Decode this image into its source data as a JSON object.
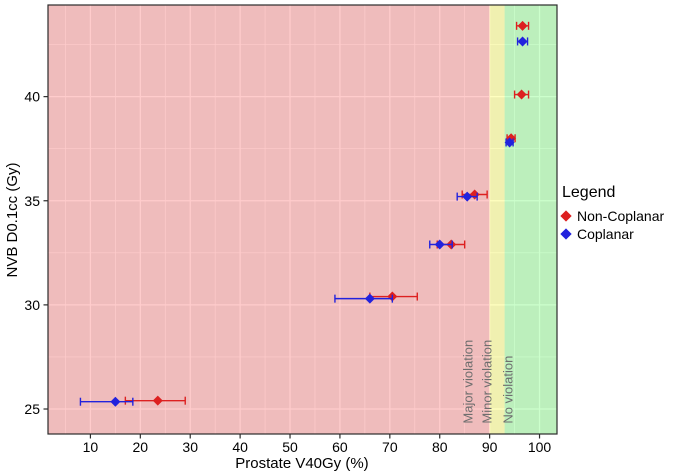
{
  "chart_data": {
    "type": "scatter",
    "title": "",
    "xlabel": "Prostate V40Gy (%)",
    "ylabel": "NVB D0.1cc (Gy)",
    "xlim": [
      1.5,
      103.5
    ],
    "ylim": [
      23.8,
      44.4
    ],
    "x_ticks": [
      10,
      20,
      30,
      40,
      50,
      60,
      70,
      80,
      90,
      100
    ],
    "y_ticks": [
      25,
      30,
      35,
      40
    ],
    "x_minor_ticks": [
      5,
      15,
      25,
      35,
      45,
      55,
      65,
      75,
      85,
      95
    ],
    "y_minor_ticks": [
      27.5,
      32.5,
      37.5,
      42.5
    ],
    "grid": true,
    "panel_background": "#ebebeb",
    "gridline_color": "#ffffff",
    "border_color": "#2b2b2b",
    "region_label_color": "#6e6e6e",
    "region_label_baseline_y": 24.3,
    "regions": [
      {
        "label": "Major violation",
        "xmin": 1.5,
        "xmax": 90,
        "color": "rgba(255,0,0,0.2)",
        "label_x": 86.6
      },
      {
        "label": "Minor violation",
        "xmin": 90,
        "xmax": 93,
        "color": "rgba(255,255,0,0.25)",
        "label_x": 90.4
      },
      {
        "label": "No violation",
        "xmin": 93,
        "xmax": 103.5,
        "color": "rgba(0,255,0,0.2)",
        "label_x": 94.6
      }
    ],
    "series": [
      {
        "name": "Non-Coplanar",
        "color": "#dd2020",
        "points": [
          {
            "x": 96.6,
            "y": 43.4,
            "xmin": 95.4,
            "xmax": 97.8
          },
          {
            "x": 96.4,
            "y": 40.1,
            "xmin": 95.0,
            "xmax": 97.8
          },
          {
            "x": 94.3,
            "y": 38.0,
            "xmin": 93.5,
            "xmax": 95.1
          },
          {
            "x": 87.0,
            "y": 35.3,
            "xmin": 84.5,
            "xmax": 89.5
          },
          {
            "x": 82.3,
            "y": 32.9,
            "xmin": 79.5,
            "xmax": 85.0
          },
          {
            "x": 70.5,
            "y": 30.4,
            "xmin": 66.0,
            "xmax": 75.5
          },
          {
            "x": 23.5,
            "y": 25.4,
            "xmin": 17.0,
            "xmax": 29.0
          }
        ]
      },
      {
        "name": "Coplanar",
        "color": "#2222dd",
        "points": [
          {
            "x": 96.6,
            "y": 42.65,
            "xmin": 95.6,
            "xmax": 97.6
          },
          {
            "x": 94.0,
            "y": 37.8,
            "xmin": 93.3,
            "xmax": 94.7
          },
          {
            "x": 85.5,
            "y": 35.2,
            "xmin": 83.5,
            "xmax": 87.5
          },
          {
            "x": 80.0,
            "y": 32.9,
            "xmin": 78.0,
            "xmax": 82.5
          },
          {
            "x": 66.0,
            "y": 30.3,
            "xmin": 59.0,
            "xmax": 70.5
          },
          {
            "x": 15.0,
            "y": 25.35,
            "xmin": 8.0,
            "xmax": 18.5
          }
        ]
      }
    ],
    "legend": {
      "title": "Legend",
      "position": "right"
    }
  }
}
